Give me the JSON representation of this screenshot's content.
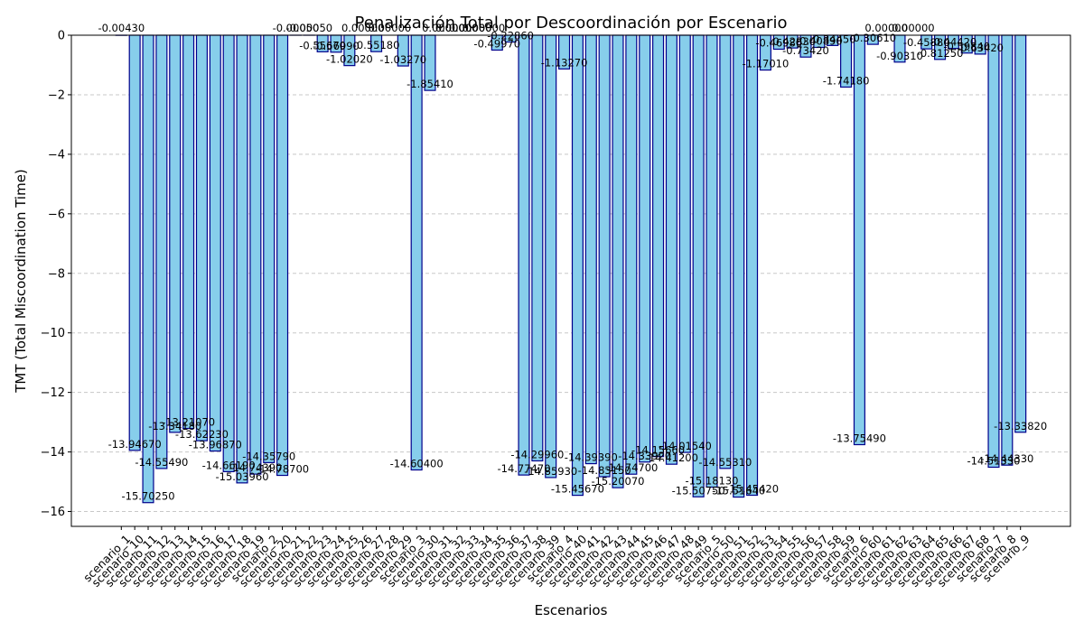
{
  "chart_data": {
    "type": "bar",
    "title": "Penalización Total por Descoordinación por Escenario",
    "xlabel": "Escenarios",
    "ylabel": "TMT (Total Miscoordination Time)",
    "ylim": [
      -16.5,
      0
    ],
    "yticks": [
      0,
      -2,
      -4,
      -6,
      -8,
      -10,
      -12,
      -14,
      -16
    ],
    "grid": true,
    "bar_color": "#87ceeb",
    "edge_color": "#00008b",
    "categories": [
      "scenario_1",
      "scenario_10",
      "scenario_11",
      "scenario_12",
      "scenario_13",
      "scenario_14",
      "scenario_15",
      "scenario_16",
      "scenario_17",
      "scenario_18",
      "scenario_19",
      "scenario_2",
      "scenario_20",
      "scenario_21",
      "scenario_22",
      "scenario_23",
      "scenario_24",
      "scenario_25",
      "scenario_26",
      "scenario_27",
      "scenario_28",
      "scenario_29",
      "scenario_3",
      "scenario_30",
      "scenario_31",
      "scenario_32",
      "scenario_33",
      "scenario_34",
      "scenario_35",
      "scenario_36",
      "scenario_37",
      "scenario_38",
      "scenario_39",
      "scenario_4",
      "scenario_40",
      "scenario_41",
      "scenario_42",
      "scenario_43",
      "scenario_44",
      "scenario_45",
      "scenario_46",
      "scenario_47",
      "scenario_48",
      "scenario_49",
      "scenario_5",
      "scenario_50",
      "scenario_51",
      "scenario_52",
      "scenario_53",
      "scenario_54",
      "scenario_55",
      "scenario_56",
      "scenario_57",
      "scenario_58",
      "scenario_59",
      "scenario_6",
      "scenario_60",
      "scenario_61",
      "scenario_62",
      "scenario_63",
      "scenario_64",
      "scenario_65",
      "scenario_66",
      "scenario_67",
      "scenario_68",
      "scenario_7",
      "scenario_8",
      "scenario_9"
    ],
    "values": [
      -0.0043,
      -13.9467,
      -15.7025,
      -14.5549,
      -13.3418,
      -13.2107,
      -13.6223,
      -13.9687,
      -14.6619,
      -15.0396,
      -14.7439,
      -14.3579,
      -14.787,
      -0.0005,
      -0.0005,
      -0.5567,
      -0.5699,
      -1.0202,
      -0.0,
      -0.5518,
      -0.0,
      -1.0327,
      -14.604,
      -1.8541,
      -0.0,
      -0.0,
      -0.0,
      -0.0,
      -0.4997,
      -0.2286,
      -14.7747,
      -14.2996,
      -14.8593,
      -1.1327,
      -15.4567,
      -14.3939,
      -14.8315,
      -15.2007,
      -14.747,
      -14.3392,
      -14.1566,
      -14.412,
      -14.0154,
      -15.5075,
      -15.1813,
      -14.5531,
      -15.5164,
      -15.4542,
      -1.1701,
      -0.4698,
      -0.4283,
      -0.7342,
      -0.4089,
      -0.3445,
      -1.7418,
      -13.7549,
      -0.3061,
      -0.0,
      -0.9031,
      -0.0,
      -0.4588,
      -0.8125,
      -0.4442,
      -0.5984,
      -0.6342,
      -14.5133,
      -14.4433,
      -13.3382
    ],
    "value_labels": [
      "-0.00430",
      "-13.94670",
      "-15.70250",
      "-14.55490",
      "-13.34180",
      "-13.21070",
      "-13.62230",
      "-13.96870",
      "-14.66190",
      "-15.03960",
      "-14.74390",
      "-14.35790",
      "-14.78700",
      "-0.00050",
      "-0.00050",
      "-0.55670",
      "-0.56990",
      "-1.02020",
      "0.00000",
      "-0.55180",
      "0.00000",
      "-1.03270",
      "-14.60400",
      "-1.85410",
      "0.00000",
      "0.00000",
      "0.00000",
      "0.00000",
      "-0.49970",
      "-0.22860",
      "-14.77470",
      "-14.29960",
      "-14.85930",
      "-1.13270",
      "-15.45670",
      "-14.39390",
      "-14.83150",
      "-15.20070",
      "-14.74700",
      "-14.33920",
      "-14.15660",
      "-14.41200",
      "-14.01540",
      "-15.50750",
      "-15.18130",
      "-14.55310",
      "-15.51640",
      "-15.45420",
      "-1.17010",
      "-0.46980",
      "-0.42830",
      "-0.73420",
      "-0.40890",
      "-0.34450",
      "-1.74180",
      "-13.75490",
      "-0.30610",
      "0.00000",
      "-0.90310",
      "0.00000",
      "-0.45880",
      "-0.81250",
      "-0.44420",
      "-0.59840",
      "-0.63420",
      "-14.51330",
      "-14.44330",
      "-13.33820"
    ]
  }
}
